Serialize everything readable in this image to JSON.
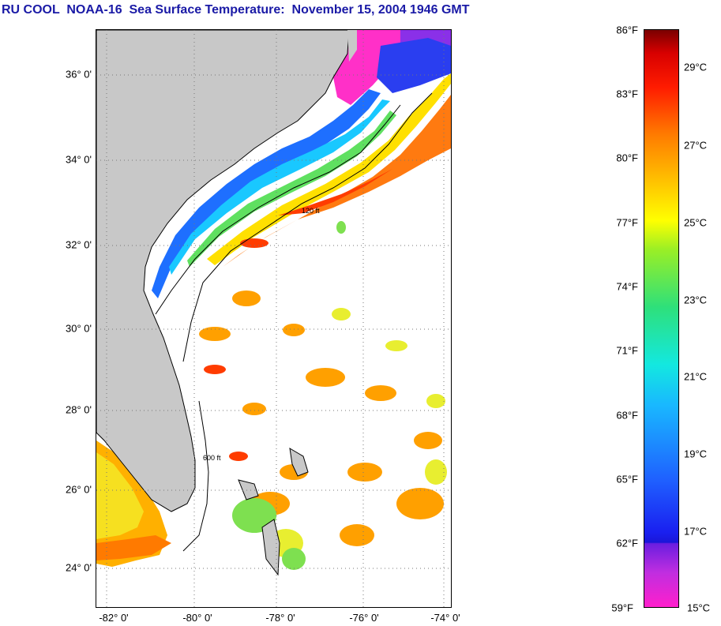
{
  "title": "RU COOL  NOAA-16  Sea Surface Temperature:  November 15, 2004 1946 GMT",
  "map": {
    "latitude_labels": [
      "36° 0'",
      "34° 0'",
      "32° 0'",
      "30° 0'",
      "28° 0'",
      "26° 0'",
      "24° 0'"
    ],
    "longitude_labels": [
      "-82° 0'",
      "-80° 0'",
      "-78° 0'",
      "-76° 0'",
      "-74° 0'"
    ],
    "land_color": "#c8c8c8",
    "gridlines": "dotted",
    "bathymetry_labels": [
      "120 ft",
      "600 ft"
    ]
  },
  "colorbar": {
    "fahrenheit_labels": [
      "86°F",
      "83°F",
      "80°F",
      "77°F",
      "74°F",
      "71°F",
      "68°F",
      "65°F",
      "62°F",
      "59°F"
    ],
    "celsius_labels": [
      "29°C",
      "27°C",
      "25°C",
      "23°C",
      "21°C",
      "19°C",
      "17°C",
      "15°C"
    ],
    "min_f": 59,
    "max_f": 86
  }
}
